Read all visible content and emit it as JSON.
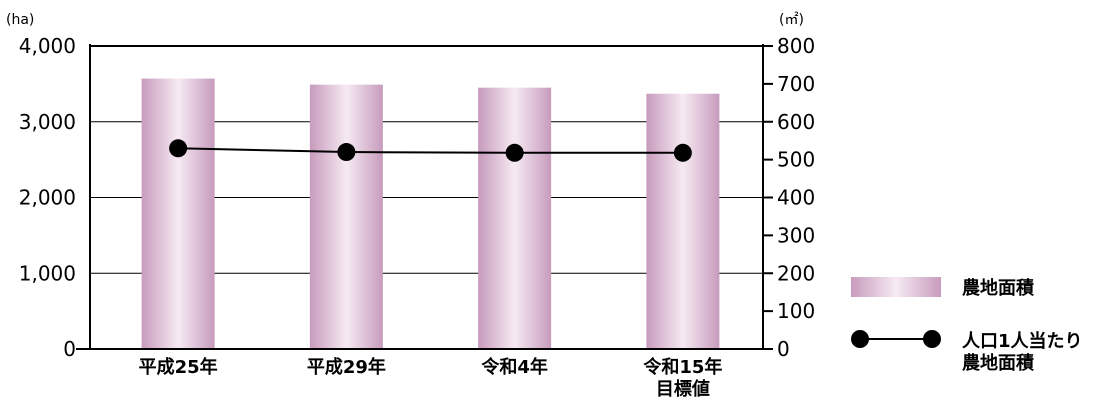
{
  "chart_data": {
    "type": "bar",
    "categories": [
      [
        "平成25年"
      ],
      [
        "平成29年"
      ],
      [
        "令和4年"
      ],
      [
        "令和15年",
        "目標値"
      ]
    ],
    "series": [
      {
        "name": "農地面積",
        "type": "bar",
        "axis": "left",
        "values": [
          3570,
          3490,
          3450,
          3370
        ],
        "color": "#c8a2c0"
      },
      {
        "name": "人口1人当たり農地面積",
        "type": "line",
        "axis": "right",
        "values": [
          530,
          520,
          518,
          518
        ],
        "color": "#000000"
      }
    ],
    "y_left": {
      "unit": "(ha)",
      "lim": [
        0,
        4000
      ],
      "ticks": [
        "0",
        "1,000",
        "2,000",
        "3,000",
        "4,000"
      ]
    },
    "y_right": {
      "unit": "(㎡)",
      "lim": [
        0,
        800
      ],
      "ticks": [
        "0",
        "100",
        "200",
        "300",
        "400",
        "500",
        "600",
        "700",
        "800"
      ]
    },
    "grid": true,
    "legend": {
      "placement": "right",
      "entries": [
        {
          "lines": [
            "農地面積"
          ],
          "symbol": "bar"
        },
        {
          "lines": [
            "人口1人当たり",
            "農地面積"
          ],
          "symbol": "line-marker"
        }
      ]
    }
  }
}
